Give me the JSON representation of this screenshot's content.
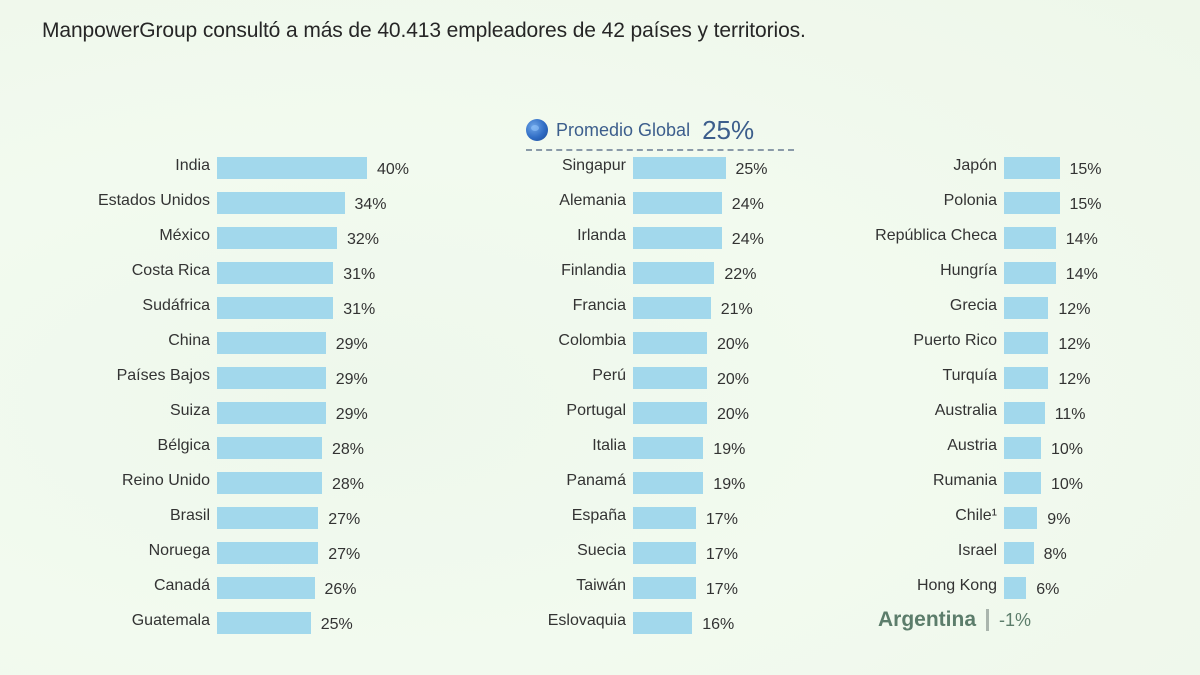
{
  "headline": "ManpowerGroup consultó a más de 40.413 empleadores de 42 países y territorios.",
  "promedio": {
    "label": "Promedio Global",
    "value": "25%",
    "icon": "globe-icon"
  },
  "colors": {
    "bar": "#a2d8ec",
    "accent": "#3c5e8c",
    "argentina": "#5c7d6b"
  },
  "chart_data": {
    "type": "bar",
    "orientation": "horizontal",
    "title": "ManpowerGroup consultó a más de 40.413 empleadores de 42 países y territorios.",
    "unit": "%",
    "reference": {
      "label": "Promedio Global",
      "value": 25
    },
    "columns": [
      {
        "categories": [
          "India",
          "Estados Unidos",
          "México",
          "Costa Rica",
          "Sudáfrica",
          "China",
          "Países Bajos",
          "Suiza",
          "Bélgica",
          "Reino Unido",
          "Brasil",
          "Noruega",
          "Canadá",
          "Guatemala"
        ],
        "values": [
          40,
          34,
          32,
          31,
          31,
          29,
          29,
          29,
          28,
          28,
          27,
          27,
          26,
          25
        ],
        "labels": [
          "40%",
          "34%",
          "32%",
          "31%",
          "31%",
          "29%",
          "29%",
          "29%",
          "28%",
          "28%",
          "27%",
          "27%",
          "26%",
          "25%"
        ]
      },
      {
        "categories": [
          "Singapur",
          "Alemania",
          "Irlanda",
          "Finlandia",
          "Francia",
          "Colombia",
          "Perú",
          "Portugal",
          "Italia",
          "Panamá",
          "España",
          "Suecia",
          "Taiwán",
          "Eslovaquia"
        ],
        "values": [
          25,
          24,
          24,
          22,
          21,
          20,
          20,
          20,
          19,
          19,
          17,
          17,
          17,
          16
        ],
        "labels": [
          "25%",
          "24%",
          "24%",
          "22%",
          "21%",
          "20%",
          "20%",
          "20%",
          "19%",
          "19%",
          "17%",
          "17%",
          "17%",
          "16%"
        ]
      },
      {
        "categories": [
          "Japón",
          "Polonia",
          "República Checa",
          "Hungría",
          "Grecia",
          "Puerto Rico",
          "Turquía",
          "Australia",
          "Austria",
          "Rumania",
          "Chile¹",
          "Israel",
          "Hong Kong"
        ],
        "values": [
          15,
          15,
          14,
          14,
          12,
          12,
          12,
          11,
          10,
          10,
          9,
          8,
          6
        ],
        "labels": [
          "15%",
          "15%",
          "14%",
          "14%",
          "12%",
          "12%",
          "12%",
          "11%",
          "10%",
          "10%",
          "9%",
          "8%",
          "6%"
        ]
      }
    ],
    "highlight": {
      "category": "Argentina",
      "value": -1,
      "label": "-1%"
    }
  }
}
